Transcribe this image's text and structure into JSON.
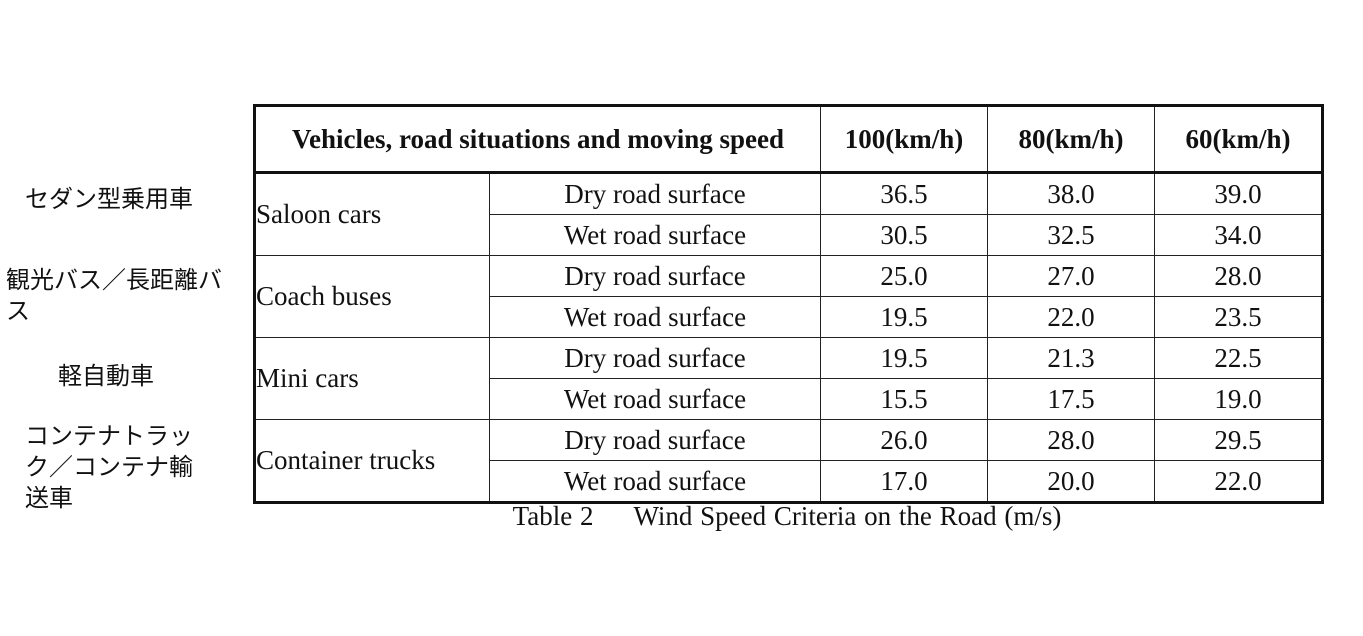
{
  "japanese_labels": [
    "セダン型乗用車",
    "観光バス／長距離バ\nス",
    "軽自動車",
    "コンテナトラッ\nク／コンテナ輸\n送車"
  ],
  "table": {
    "headers": [
      "Vehicles, road situations and moving speed",
      "100(km/h)",
      "80(km/h)",
      "60(km/h)"
    ],
    "groups": [
      {
        "vehicle": "Saloon cars",
        "rows": [
          {
            "condition": "Dry road surface",
            "values": [
              "36.5",
              "38.0",
              "39.0"
            ]
          },
          {
            "condition": "Wet road surface",
            "values": [
              "30.5",
              "32.5",
              "34.0"
            ]
          }
        ]
      },
      {
        "vehicle": "Coach buses",
        "rows": [
          {
            "condition": "Dry road surface",
            "values": [
              "25.0",
              "27.0",
              "28.0"
            ]
          },
          {
            "condition": "Wet road surface",
            "values": [
              "19.5",
              "22.0",
              "23.5"
            ]
          }
        ]
      },
      {
        "vehicle": "Mini cars",
        "rows": [
          {
            "condition": "Dry road surface",
            "values": [
              "19.5",
              "21.3",
              "22.5"
            ]
          },
          {
            "condition": "Wet road surface",
            "values": [
              "15.5",
              "17.5",
              "19.0"
            ]
          }
        ]
      },
      {
        "vehicle": "Container trucks",
        "rows": [
          {
            "condition": "Dry road surface",
            "values": [
              "26.0",
              "28.0",
              "29.5"
            ]
          },
          {
            "condition": "Wet road surface",
            "values": [
              "17.0",
              "20.0",
              "22.0"
            ]
          }
        ]
      }
    ]
  },
  "caption": {
    "label": "Table 2",
    "text": "Wind Speed Criteria on the Road (m/s)"
  }
}
